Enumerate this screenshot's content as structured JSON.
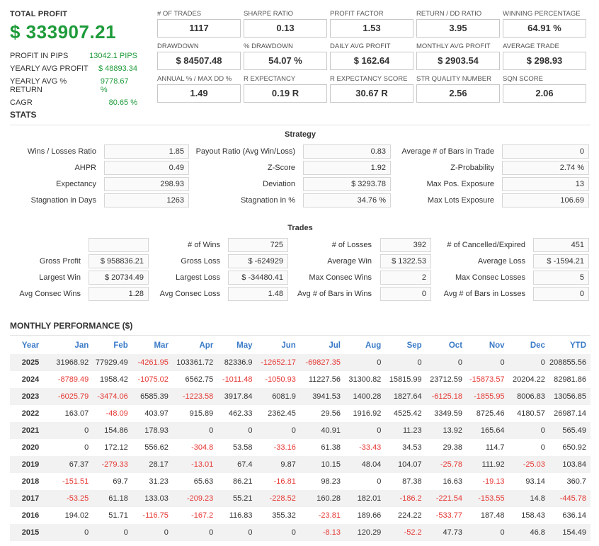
{
  "summary": {
    "total_profit_label": "TOTAL PROFIT",
    "total_profit_value": "$ 333907.21",
    "rows": [
      {
        "label": "PROFIT IN PIPS",
        "value": "13042.1 PIPS"
      },
      {
        "label": "YEARLY AVG PROFIT",
        "value": "$ 48893.34"
      },
      {
        "label": "YEARLY AVG % RETURN",
        "value": "9778.67 %"
      },
      {
        "label": "CAGR",
        "value": "80.65 %"
      }
    ]
  },
  "metrics": [
    {
      "label": "# OF TRADES",
      "value": "1117"
    },
    {
      "label": "SHARPE RATIO",
      "value": "0.13"
    },
    {
      "label": "PROFIT FACTOR",
      "value": "1.53"
    },
    {
      "label": "RETURN / DD RATIO",
      "value": "3.95"
    },
    {
      "label": "WINNING PERCENTAGE",
      "value": "64.91 %"
    },
    {
      "label": "DRAWDOWN",
      "value": "$ 84507.48"
    },
    {
      "label": "% DRAWDOWN",
      "value": "54.07 %"
    },
    {
      "label": "DAILY AVG PROFIT",
      "value": "$ 162.64"
    },
    {
      "label": "MONTHLY AVG PROFIT",
      "value": "$ 2903.54"
    },
    {
      "label": "AVERAGE TRADE",
      "value": "$ 298.93"
    },
    {
      "label": "ANNUAL % / MAX DD %",
      "value": "1.49"
    },
    {
      "label": "R EXPECTANCY",
      "value": "0.19 R"
    },
    {
      "label": "R EXPECTANCY SCORE",
      "value": "30.67 R"
    },
    {
      "label": "STR QUALITY NUMBER",
      "value": "2.56"
    },
    {
      "label": "SQN SCORE",
      "value": "2.06"
    }
  ],
  "stats": {
    "title": "STATS",
    "strategy": {
      "heading": "Strategy",
      "rows": [
        [
          {
            "label": "Wins / Losses Ratio",
            "value": "1.85"
          },
          {
            "label": "Payout Ratio (Avg Win/Loss)",
            "value": "0.83"
          },
          {
            "label": "Average # of Bars in Trade",
            "value": "0"
          }
        ],
        [
          {
            "label": "AHPR",
            "value": "0.49"
          },
          {
            "label": "Z-Score",
            "value": "1.92"
          },
          {
            "label": "Z-Probability",
            "value": "2.74 %"
          }
        ],
        [
          {
            "label": "Expectancy",
            "value": "298.93"
          },
          {
            "label": "Deviation",
            "value": "$ 3293.78"
          },
          {
            "label": "Max Pos. Exposure",
            "value": "13"
          }
        ],
        [
          {
            "label": "Stagnation in Days",
            "value": "1263"
          },
          {
            "label": "Stagnation in %",
            "value": "34.76 %"
          },
          {
            "label": "Max Lots Exposure",
            "value": "106.69"
          }
        ]
      ]
    },
    "trades": {
      "heading": "Trades",
      "rows": [
        [
          {
            "label": "",
            "value": ""
          },
          {
            "label": "# of Wins",
            "value": "725"
          },
          {
            "label": "# of Losses",
            "value": "392"
          },
          {
            "label": "# of Cancelled/Expired",
            "value": "451"
          }
        ],
        [
          {
            "label": "Gross Profit",
            "value": "$ 958836.21"
          },
          {
            "label": "Gross Loss",
            "value": "$ -624929"
          },
          {
            "label": "Average Win",
            "value": "$ 1322.53"
          },
          {
            "label": "Average Loss",
            "value": "$ -1594.21"
          }
        ],
        [
          {
            "label": "Largest Win",
            "value": "$ 20734.49"
          },
          {
            "label": "Largest Loss",
            "value": "$ -34480.41"
          },
          {
            "label": "Max Consec Wins",
            "value": "2"
          },
          {
            "label": "Max Consec Losses",
            "value": "5"
          }
        ],
        [
          {
            "label": "Avg Consec Wins",
            "value": "1.28"
          },
          {
            "label": "Avg Consec Loss",
            "value": "1.48"
          },
          {
            "label": "Avg # of Bars in Wins",
            "value": "0"
          },
          {
            "label": "Avg # of Bars in Losses",
            "value": "0"
          }
        ]
      ]
    }
  },
  "monthly": {
    "title": "MONTHLY PERFORMANCE ($)",
    "headers": [
      "Year",
      "Jan",
      "Feb",
      "Mar",
      "Apr",
      "May",
      "Jun",
      "Jul",
      "Aug",
      "Sep",
      "Oct",
      "Nov",
      "Dec",
      "YTD"
    ],
    "rows": [
      [
        "2025",
        "31968.92",
        "77929.49",
        "-4261.95",
        "103361.72",
        "82336.9",
        "-12652.17",
        "-69827.35",
        "0",
        "0",
        "0",
        "0",
        "0",
        "208855.56"
      ],
      [
        "2024",
        "-8789.49",
        "1958.42",
        "-1075.02",
        "6562.75",
        "-1011.48",
        "-1050.93",
        "11227.56",
        "31300.82",
        "15815.99",
        "23712.59",
        "-15873.57",
        "20204.22",
        "82981.86"
      ],
      [
        "2023",
        "-6025.79",
        "-3474.06",
        "6585.39",
        "-1223.58",
        "3917.84",
        "6081.9",
        "3941.53",
        "1400.28",
        "1827.64",
        "-6125.18",
        "-1855.95",
        "8006.83",
        "13056.85"
      ],
      [
        "2022",
        "163.07",
        "-48.09",
        "403.97",
        "915.89",
        "462.33",
        "2362.45",
        "29.56",
        "1916.92",
        "4525.42",
        "3349.59",
        "8725.46",
        "4180.57",
        "26987.14"
      ],
      [
        "2021",
        "0",
        "154.86",
        "178.93",
        "0",
        "0",
        "0",
        "40.91",
        "0",
        "11.23",
        "13.92",
        "165.64",
        "0",
        "565.49"
      ],
      [
        "2020",
        "0",
        "172.12",
        "556.62",
        "-304.8",
        "53.58",
        "-33.16",
        "61.38",
        "-33.43",
        "34.53",
        "29.38",
        "114.7",
        "0",
        "650.92"
      ],
      [
        "2019",
        "67.37",
        "-279.33",
        "28.17",
        "-13.01",
        "67.4",
        "9.87",
        "10.15",
        "48.04",
        "104.07",
        "-25.78",
        "111.92",
        "-25.03",
        "103.84"
      ],
      [
        "2018",
        "-151.51",
        "69.7",
        "31.23",
        "65.63",
        "86.21",
        "-16.81",
        "98.23",
        "0",
        "87.38",
        "16.63",
        "-19.13",
        "93.14",
        "360.7"
      ],
      [
        "2017",
        "-53.25",
        "61.18",
        "133.03",
        "-209.23",
        "55.21",
        "-228.52",
        "160.28",
        "182.01",
        "-186.2",
        "-221.54",
        "-153.55",
        "14.8",
        "-445.78"
      ],
      [
        "2016",
        "194.02",
        "51.71",
        "-116.75",
        "-167.2",
        "116.83",
        "355.32",
        "-23.81",
        "189.66",
        "224.22",
        "-533.77",
        "187.48",
        "158.43",
        "636.14"
      ],
      [
        "2015",
        "0",
        "0",
        "0",
        "0",
        "0",
        "0",
        "-8.13",
        "120.29",
        "-52.2",
        "47.73",
        "0",
        "46.8",
        "154.49"
      ]
    ]
  },
  "colors": {
    "positive": "#1e9b3a",
    "negative": "#e53935",
    "header_blue": "#3a7bc8"
  }
}
